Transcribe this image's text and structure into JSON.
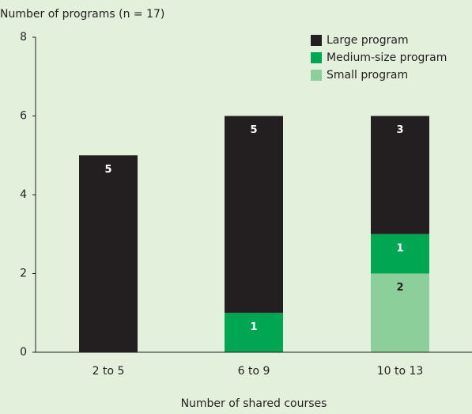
{
  "chart_data": {
    "type": "stacked-bar",
    "title": "Number of programs (n = 17)",
    "x_label": "Number of shared courses",
    "categories": [
      "2 to 5",
      "6 to 9",
      "10 to 13"
    ],
    "series": [
      {
        "name": "Small program",
        "color": "#8ccf9a",
        "label_color": "#231f20",
        "values": [
          0,
          0,
          2
        ]
      },
      {
        "name": "Medium-size program",
        "color": "#00a651",
        "label_color": "#ffffff",
        "values": [
          0,
          1,
          1
        ]
      },
      {
        "name": "Large program",
        "color": "#231f20",
        "label_color": "#ffffff",
        "values": [
          5,
          5,
          3
        ]
      }
    ],
    "ylim": [
      0,
      8
    ],
    "yticks": [
      0,
      2,
      4,
      6,
      8
    ],
    "grid": false,
    "legend": "top-right"
  }
}
